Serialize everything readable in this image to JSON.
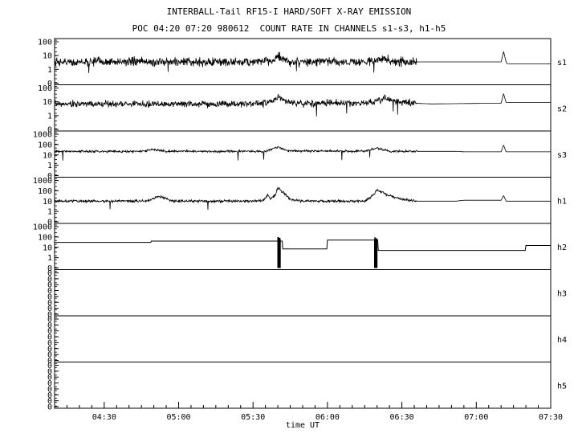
{
  "title": "INTERBALL-Tail RF15-I HARD/SOFT X-RAY EMISSION",
  "subtitle": "POC 04:20 07:20 980612  COUNT RATE IN CHANNELS s1-s3, h1-h5",
  "chart_data": {
    "type": "line",
    "xlabel": "time UT",
    "x_ticks": [
      "04:30",
      "05:00",
      "05:30",
      "06:00",
      "06:30",
      "07:00",
      "07:30"
    ],
    "x_tick_minutes": [
      270,
      300,
      330,
      360,
      390,
      420,
      450
    ],
    "xlim_minutes": [
      250,
      450
    ],
    "y_scale": "log",
    "series": [
      {
        "name": "s1",
        "y_ticks": [
          "100",
          "10",
          "1",
          "0"
        ],
        "ylim": [
          0.1,
          100
        ],
        "noise": 0.55,
        "points": [
          [
            250,
            3.5
          ],
          [
            290,
            3.5
          ],
          [
            330,
            3.5
          ],
          [
            338,
            4.5
          ],
          [
            340,
            9
          ],
          [
            342,
            5
          ],
          [
            345,
            3.5
          ],
          [
            375,
            3.5
          ],
          [
            380,
            4.5
          ],
          [
            383,
            6
          ],
          [
            386,
            4
          ],
          [
            388,
            3.5
          ],
          [
            392,
            3.5
          ],
          [
            396,
            3.5
          ],
          [
            402,
            3.5
          ],
          [
            425,
            3.5
          ],
          [
            430,
            3.5
          ],
          [
            431,
            20
          ],
          [
            432,
            3.5
          ],
          [
            432.5,
            2.5
          ],
          [
            450,
            2.5
          ]
        ],
        "noise_until": 396
      },
      {
        "name": "s2",
        "y_ticks": [
          "100",
          "10",
          "1",
          "0"
        ],
        "ylim": [
          0.1,
          100
        ],
        "noise": 0.4,
        "points": [
          [
            250,
            7
          ],
          [
            330,
            7
          ],
          [
            336,
            8
          ],
          [
            339,
            15
          ],
          [
            341,
            20
          ],
          [
            343,
            12
          ],
          [
            347,
            8
          ],
          [
            376,
            8
          ],
          [
            381,
            12
          ],
          [
            384,
            17
          ],
          [
            388,
            10
          ],
          [
            394,
            8
          ],
          [
            402,
            7
          ],
          [
            430,
            8
          ],
          [
            431,
            40
          ],
          [
            432,
            9
          ],
          [
            450,
            9
          ]
        ],
        "noise_until": 396
      },
      {
        "name": "s3",
        "y_ticks": [
          "1000",
          "100",
          "10",
          "1",
          "0"
        ],
        "ylim": [
          0.1,
          1000
        ],
        "noise": 0.18,
        "points": [
          [
            250,
            22
          ],
          [
            285,
            22
          ],
          [
            290,
            35
          ],
          [
            295,
            22
          ],
          [
            335,
            22
          ],
          [
            340,
            60
          ],
          [
            344,
            25
          ],
          [
            375,
            22
          ],
          [
            380,
            45
          ],
          [
            385,
            22
          ],
          [
            395,
            22
          ],
          [
            412,
            22
          ],
          [
            415,
            20
          ],
          [
            430,
            20
          ],
          [
            431,
            90
          ],
          [
            432,
            20
          ],
          [
            450,
            20
          ]
        ],
        "noise_until": 396
      },
      {
        "name": "h1",
        "y_ticks": [
          "1000",
          "100",
          "10",
          "1",
          "0"
        ],
        "ylim": [
          0.1,
          1000
        ],
        "noise": 0.22,
        "points": [
          [
            250,
            10
          ],
          [
            287,
            10
          ],
          [
            292,
            30
          ],
          [
            298,
            10
          ],
          [
            334,
            10
          ],
          [
            336,
            40
          ],
          [
            337,
            15
          ],
          [
            339,
            40
          ],
          [
            340,
            200
          ],
          [
            342,
            80
          ],
          [
            345,
            15
          ],
          [
            350,
            10
          ],
          [
            375,
            10
          ],
          [
            378,
            30
          ],
          [
            380,
            120
          ],
          [
            384,
            40
          ],
          [
            390,
            15
          ],
          [
            396,
            10
          ],
          [
            412,
            10
          ],
          [
            415,
            12
          ],
          [
            430,
            12
          ],
          [
            431,
            35
          ],
          [
            432,
            10
          ],
          [
            450,
            10
          ]
        ],
        "noise_until": 396
      },
      {
        "name": "h2",
        "y_ticks": [
          "1000",
          "100",
          "10",
          "1",
          "0"
        ],
        "ylim": [
          0.1,
          1000
        ],
        "noise": 0,
        "steps": [
          [
            250,
            30
          ],
          [
            289,
            40
          ],
          [
            339,
            40
          ],
          [
            342,
            7
          ],
          [
            360,
            50
          ],
          [
            380,
            50
          ],
          [
            380.5,
            5
          ],
          [
            419,
            5
          ],
          [
            440,
            15
          ],
          [
            450,
            15
          ]
        ],
        "bursts": [
          340,
          341,
          379,
          380
        ]
      },
      {
        "name": "h3",
        "y_ticks": [
          "0",
          "0",
          "0",
          "0",
          "0",
          "0",
          "0",
          "0"
        ],
        "ylim": [
          0.1,
          1000
        ],
        "points": []
      },
      {
        "name": "h4",
        "y_ticks": [
          "0",
          "0",
          "0",
          "0",
          "0",
          "0",
          "0",
          "0"
        ],
        "ylim": [
          0.1,
          1000
        ],
        "points": []
      },
      {
        "name": "h5",
        "y_ticks": [
          "0",
          "0",
          "0",
          "0",
          "0",
          "0",
          "0",
          "0"
        ],
        "ylim": [
          0.1,
          1000
        ],
        "points": []
      }
    ]
  }
}
